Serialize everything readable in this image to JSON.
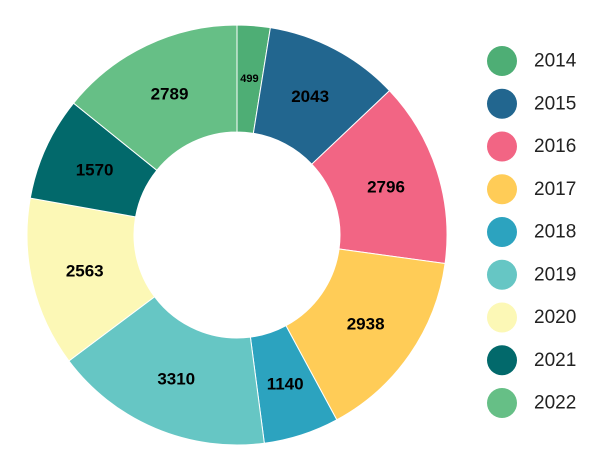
{
  "chart_data": {
    "type": "pie",
    "variant": "donut",
    "categories": [
      "2014",
      "2015",
      "2016",
      "2017",
      "2018",
      "2019",
      "2020",
      "2021",
      "2022"
    ],
    "values": [
      499,
      2043,
      2796,
      2938,
      1140,
      3310,
      2563,
      1570,
      2789
    ],
    "colors": [
      "#4EAE75",
      "#22668F",
      "#F26584",
      "#FFCC57",
      "#2CA3BF",
      "#66C6C4",
      "#FCF8B6",
      "#02696B",
      "#66BF86"
    ],
    "legend": {
      "position": "right",
      "marker": "circle"
    },
    "data_labels": true,
    "start": "top",
    "direction": "clockwise"
  }
}
